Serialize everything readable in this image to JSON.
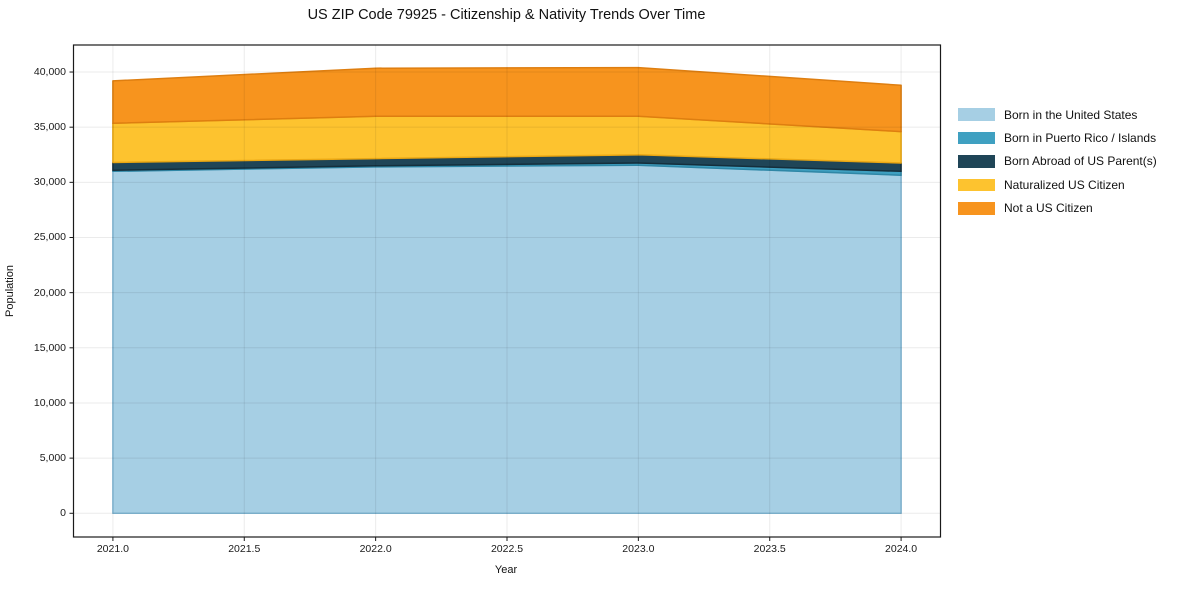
{
  "window": {
    "background": "#ffffff"
  },
  "chart_data": {
    "type": "area",
    "stacked": true,
    "title": "US ZIP Code 79925 - Citizenship & Nativity Trends Over Time",
    "xlabel": "Year",
    "ylabel": "Population",
    "x": [
      2021,
      2022,
      2023,
      2024
    ],
    "series": [
      {
        "name": "Born in the United States",
        "color": "#a6cfe4",
        "edge_color": "#83b9d6",
        "values": [
          31000,
          31400,
          31550,
          30650
        ]
      },
      {
        "name": "Born in Puerto Rico / Islands",
        "color": "#3fa0c1",
        "edge_color": "#2f87a6",
        "values": [
          100,
          100,
          200,
          350
        ]
      },
      {
        "name": "Born Abroad of US Parent(s)",
        "color": "#1f4557",
        "edge_color": "#152f3c",
        "values": [
          700,
          650,
          750,
          750
        ]
      },
      {
        "name": "Naturalized US Citizen",
        "color": "#fdc32f",
        "edge_color": "#eaa713",
        "values": [
          3550,
          3850,
          3500,
          2850
        ]
      },
      {
        "name": "Not a US Citizen",
        "color": "#f7941e",
        "edge_color": "#de7e10",
        "values": [
          3850,
          4350,
          4400,
          4200
        ]
      }
    ],
    "x_ticks": [
      {
        "v": 2021.0,
        "label": "2021.0"
      },
      {
        "v": 2021.5,
        "label": "2021.5"
      },
      {
        "v": 2022.0,
        "label": "2022.0"
      },
      {
        "v": 2022.5,
        "label": "2022.5"
      },
      {
        "v": 2023.0,
        "label": "2023.0"
      },
      {
        "v": 2023.5,
        "label": "2023.5"
      },
      {
        "v": 2024.0,
        "label": "2024.0"
      }
    ],
    "y_ticks": [
      {
        "v": 0,
        "label": "0"
      },
      {
        "v": 5000,
        "label": "5,000"
      },
      {
        "v": 10000,
        "label": "10,000"
      },
      {
        "v": 15000,
        "label": "15,000"
      },
      {
        "v": 20000,
        "label": "20,000"
      },
      {
        "v": 25000,
        "label": "25,000"
      },
      {
        "v": 30000,
        "label": "30,000"
      },
      {
        "v": 35000,
        "label": "35,000"
      },
      {
        "v": 40000,
        "label": "40,000"
      }
    ],
    "xlim": [
      2020.85,
      2024.15
    ],
    "ylim": [
      -2150,
      42450
    ],
    "grid": true,
    "legend_position": "right",
    "grid_color": "rgba(0,0,0,0.08)",
    "spine_color": "#1a1a1a"
  }
}
